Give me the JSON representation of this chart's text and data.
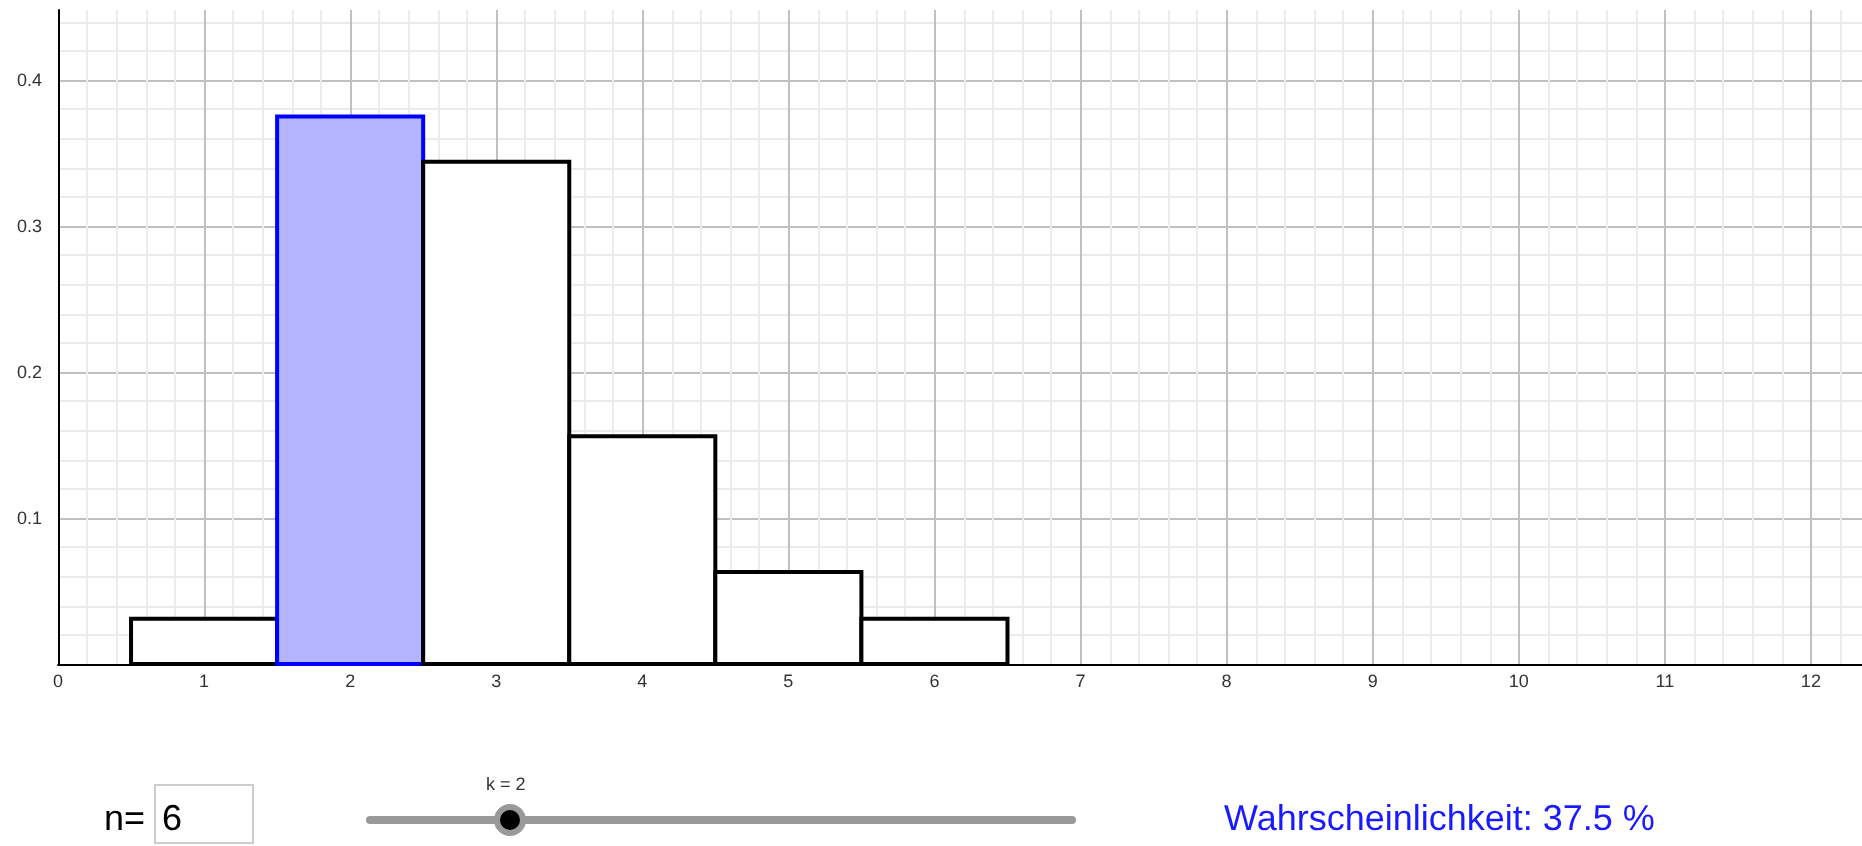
{
  "chart_data": {
    "type": "histogram",
    "bins": [
      0.5,
      1.5,
      2.5,
      3.5,
      4.5,
      5.5,
      6.5
    ],
    "values": [
      0.031,
      0.375,
      0.344,
      0.156,
      0.063,
      0.031
    ],
    "colors": [
      "#ffffff",
      "#b4b4ff",
      "#ffffff",
      "#ffffff",
      "#ffffff",
      "#ffffff"
    ],
    "xlim": [
      0,
      12.35
    ],
    "xticks": [
      0,
      1,
      2,
      3,
      4,
      5,
      6,
      7,
      8,
      9,
      10,
      11,
      12
    ],
    "ylim": [
      0,
      0.448
    ],
    "yticks": [
      0.1,
      0.2,
      0.3,
      0.4
    ],
    "grid": true,
    "annotations": [
      "n=",
      "6",
      "k = 2",
      "Wahrscheinlichkeit: 37.5 %"
    ]
  }
}
